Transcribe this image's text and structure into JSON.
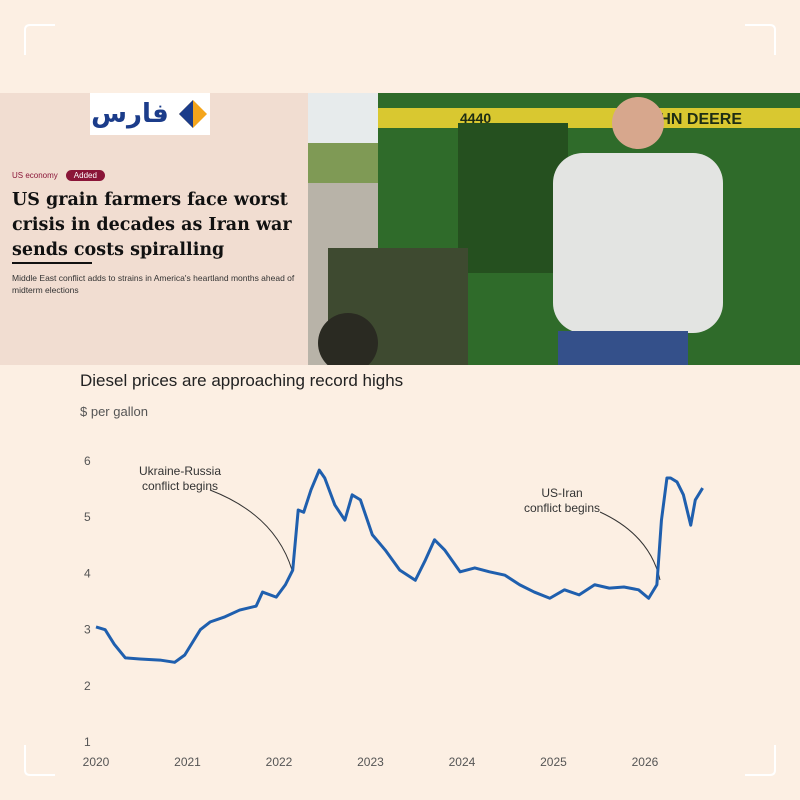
{
  "logo": "فارس",
  "article": {
    "section": "US economy",
    "badge": "Added",
    "headline": [
      "US grain farmers face worst",
      "crisis in decades as Iran war",
      "sends costs spiralling"
    ],
    "standfirst": "Middle East conflict adds to strains in America's heartland months ahead of midterm elections"
  },
  "chart_data": {
    "type": "line",
    "title": "Diesel prices are approaching record highs",
    "y_label": "$ per gallon",
    "annotations": [
      {
        "lines": [
          "Ukraine-Russia",
          "conflict begins"
        ]
      },
      {
        "lines": [
          "US-Iran",
          "conflict begins"
        ]
      }
    ],
    "x": [
      2020.0,
      2020.1,
      2020.2,
      2020.32,
      2020.48,
      2020.7,
      2020.86,
      2020.97,
      2021.14,
      2021.25,
      2021.41,
      2021.57,
      2021.75,
      2021.82,
      2021.97,
      2022.07,
      2022.15,
      2022.21,
      2022.27,
      2022.35,
      2022.44,
      2022.5,
      2022.61,
      2022.72,
      2022.8,
      2022.89,
      2023.02,
      2023.16,
      2023.32,
      2023.49,
      2023.6,
      2023.7,
      2023.81,
      2023.98,
      2024.14,
      2024.3,
      2024.47,
      2024.63,
      2024.79,
      2024.96,
      2025.12,
      2025.28,
      2025.45,
      2025.61,
      2025.77,
      2025.93,
      2026.04,
      2026.13,
      2026.18,
      2026.24,
      2026.28,
      2026.35,
      2026.42,
      2026.5,
      2026.55,
      2026.63
    ],
    "series": [
      {
        "name": "Diesel",
        "color": "#1f5fae",
        "values": [
          3.03,
          2.98,
          2.72,
          2.48,
          2.46,
          2.44,
          2.4,
          2.53,
          2.98,
          3.12,
          3.21,
          3.33,
          3.4,
          3.65,
          3.56,
          3.78,
          4.04,
          5.11,
          5.07,
          5.47,
          5.82,
          5.68,
          5.2,
          4.93,
          5.38,
          5.29,
          4.67,
          4.4,
          4.04,
          3.86,
          4.22,
          4.58,
          4.4,
          4.01,
          4.08,
          4.01,
          3.95,
          3.78,
          3.65,
          3.54,
          3.69,
          3.6,
          3.78,
          3.72,
          3.74,
          3.69,
          3.54,
          3.78,
          4.93,
          5.68,
          5.68,
          5.61,
          5.38,
          4.84,
          5.29,
          5.5
        ]
      }
    ],
    "xlim": [
      2020,
      2026.75
    ],
    "xticks": [
      2020,
      2021,
      2022,
      2023,
      2024,
      2025,
      2026
    ],
    "ylim": [
      1,
      6
    ],
    "yticks": [
      1,
      2,
      3,
      4,
      5,
      6
    ],
    "grid": false
  }
}
